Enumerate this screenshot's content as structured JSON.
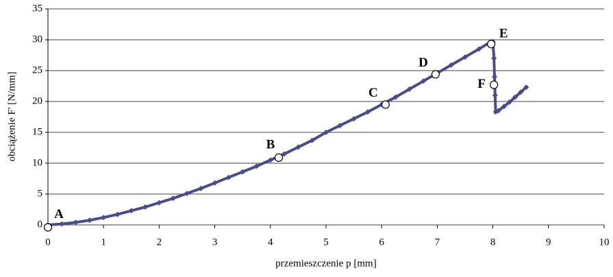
{
  "chart_data": {
    "type": "line",
    "xlabel": "przemieszczenie p [mm]",
    "ylabel": "obciążenie F' [N/mm]",
    "xlim": [
      0,
      10
    ],
    "xticks": [
      0,
      1,
      2,
      3,
      4,
      5,
      6,
      7,
      8,
      9,
      10
    ],
    "ylim": [
      0,
      35
    ],
    "yticks": [
      0,
      5,
      10,
      15,
      20,
      25,
      30,
      35
    ],
    "grid": true,
    "series": [
      {
        "color": "#4b4b8c",
        "x": [
          0,
          0.25,
          0.5,
          0.75,
          1,
          1.25,
          1.5,
          1.75,
          2,
          2.25,
          2.5,
          2.75,
          3,
          3.25,
          3.5,
          3.75,
          4,
          4.25,
          4.5,
          4.75,
          5,
          5.25,
          5.5,
          5.75,
          6,
          6.25,
          6.5,
          6.75,
          7,
          7.25,
          7.5,
          7.75,
          7.95,
          8.0,
          8.02,
          8.03,
          8.04,
          8.05,
          8.1,
          8.2,
          8.3,
          8.4,
          8.5,
          8.6
        ],
        "values": [
          0,
          0.15,
          0.4,
          0.75,
          1.2,
          1.7,
          2.3,
          2.9,
          3.6,
          4.3,
          5.1,
          5.9,
          6.8,
          7.7,
          8.6,
          9.5,
          10.5,
          11.5,
          12.6,
          13.7,
          15,
          16.1,
          17.2,
          18.3,
          19.5,
          20.7,
          22,
          23.3,
          24.6,
          25.9,
          27.2,
          28.5,
          29.6,
          29.7,
          27,
          24,
          21,
          18.3,
          18.5,
          19.2,
          19.9,
          20.7,
          21.5,
          22.3
        ]
      }
    ],
    "annotations": [
      {
        "label": "A",
        "x": 0,
        "y": -0.4
      },
      {
        "label": "B",
        "x": 4.15,
        "y": 10.9
      },
      {
        "label": "C",
        "x": 6.07,
        "y": 19.5
      },
      {
        "label": "D",
        "x": 6.97,
        "y": 24.4
      },
      {
        "label": "E",
        "x": 7.97,
        "y": 29.3
      },
      {
        "label": "F",
        "x": 8.02,
        "y": 22.7
      }
    ]
  }
}
